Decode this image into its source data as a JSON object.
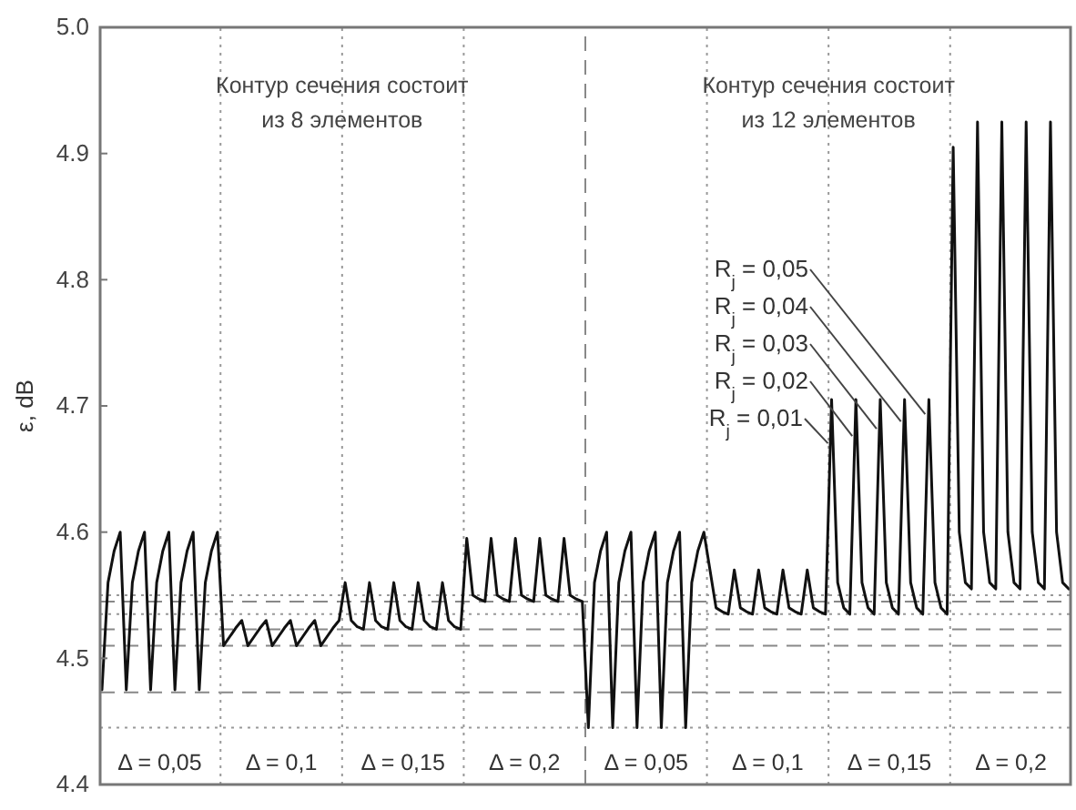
{
  "chart_data": {
    "type": "line",
    "ylabel": "ε, dB",
    "categories": [
      null,
      null,
      null,
      null,
      null,
      null,
      null,
      null,
      null,
      null,
      null,
      null,
      null,
      null,
      null,
      null,
      null,
      null,
      null,
      null,
      null,
      null,
      null,
      null,
      null,
      null,
      null,
      null,
      null,
      null,
      null,
      null,
      null,
      null,
      null,
      null,
      null,
      null,
      null,
      null,
      null,
      null,
      null,
      null,
      null,
      null,
      null,
      null,
      null,
      null,
      null,
      null,
      null,
      null,
      null,
      null,
      null,
      null,
      null,
      null,
      null,
      null,
      null,
      null,
      null,
      null,
      null,
      null,
      null,
      null,
      null,
      null,
      null,
      null,
      null,
      null,
      null,
      null,
      null,
      null,
      null,
      null,
      null,
      null,
      null,
      null,
      null,
      null,
      null,
      null,
      null,
      null,
      null,
      null,
      null,
      null,
      null,
      null,
      null,
      null,
      null,
      null,
      null,
      null,
      null,
      null,
      null,
      null,
      null,
      null,
      null,
      null,
      null,
      null,
      null,
      null,
      null,
      null,
      null,
      null,
      null,
      null,
      null,
      null,
      null,
      null,
      null,
      null,
      null,
      null,
      null,
      null,
      null,
      null,
      null,
      null,
      null,
      null,
      null,
      null,
      null,
      null,
      null,
      null,
      null,
      null,
      null,
      null,
      null,
      null,
      null,
      null,
      null,
      null,
      null,
      null,
      null,
      null,
      null,
      null
    ],
    "ylim": [
      4.4,
      5.0
    ],
    "yticks": [
      4.4,
      4.5,
      4.6,
      4.7,
      4.8,
      4.9,
      {
        "value": 5.0,
        "label": "5.0"
      }
    ],
    "tick_labels": "y",
    "grid": false,
    "marker": "none",
    "line_style": "solid",
    "series": [
      {
        "color": "#111111",
        "values": [
          4.475,
          4.56,
          4.585,
          4.6,
          4.475,
          4.56,
          4.585,
          4.6,
          4.475,
          4.56,
          4.585,
          4.6,
          4.475,
          4.56,
          4.585,
          4.6,
          4.475,
          4.56,
          4.585,
          4.6,
          4.51,
          4.517,
          4.524,
          4.53,
          4.51,
          4.517,
          4.524,
          4.53,
          4.51,
          4.517,
          4.524,
          4.53,
          4.51,
          4.517,
          4.524,
          4.53,
          4.51,
          4.517,
          4.524,
          4.53,
          4.56,
          4.53,
          4.525,
          4.523,
          4.56,
          4.53,
          4.525,
          4.523,
          4.56,
          4.53,
          4.525,
          4.523,
          4.56,
          4.53,
          4.525,
          4.523,
          4.56,
          4.53,
          4.525,
          4.523,
          4.595,
          4.55,
          4.547,
          4.545,
          4.595,
          4.55,
          4.547,
          4.545,
          4.595,
          4.55,
          4.547,
          4.545,
          4.595,
          4.55,
          4.547,
          4.545,
          4.595,
          4.55,
          4.547,
          4.545,
          4.445,
          4.56,
          4.585,
          4.6,
          4.445,
          4.56,
          4.585,
          4.6,
          4.445,
          4.56,
          4.585,
          4.6,
          4.445,
          4.56,
          4.585,
          4.6,
          4.445,
          4.56,
          4.585,
          4.6,
          4.57,
          4.54,
          4.537,
          4.535,
          4.57,
          4.54,
          4.537,
          4.535,
          4.57,
          4.54,
          4.537,
          4.535,
          4.57,
          4.54,
          4.537,
          4.535,
          4.57,
          4.54,
          4.537,
          4.535,
          4.705,
          4.56,
          4.54,
          4.535,
          4.705,
          4.56,
          4.54,
          4.535,
          4.705,
          4.56,
          4.54,
          4.535,
          4.705,
          4.56,
          4.54,
          4.535,
          4.705,
          4.56,
          4.54,
          4.535,
          4.905,
          4.6,
          4.56,
          4.555,
          4.925,
          4.6,
          4.56,
          4.555,
          4.925,
          4.6,
          4.56,
          4.555,
          4.925,
          4.6,
          4.56,
          4.555,
          4.925,
          4.6,
          4.56,
          4.555
        ]
      }
    ],
    "ref_lines": [
      {
        "axis": "y",
        "value": 4.55,
        "line_style": "dotted",
        "color": "#999999"
      },
      {
        "axis": "y",
        "value": 4.545,
        "line_style": "dashed",
        "color": "#888888"
      },
      {
        "axis": "y",
        "value": 4.535,
        "line_style": "dotted",
        "color": "#999999"
      },
      {
        "axis": "y",
        "value": 4.523,
        "line_style": "dashed",
        "color": "#888888"
      },
      {
        "axis": "y",
        "value": 4.51,
        "line_style": "dashed",
        "color": "#888888"
      },
      {
        "axis": "y",
        "value": 4.473,
        "line_style": "dashed",
        "color": "#888888"
      },
      {
        "axis": "y",
        "value": 4.445,
        "line_style": "dotted",
        "color": "#999999"
      }
    ],
    "annotations": [
      "Контур сечения состоит\nиз 8 элементов",
      "Контур сечения состоит\nиз 12 элементов",
      "Δ = 0,05",
      "Δ = 0,1",
      "Δ = 0,15",
      "Δ = 0,2",
      "Δ = 0,05",
      "Δ = 0,1",
      "Δ = 0,15",
      "Δ = 0,2",
      "R$_{j}$ = 0,05",
      "R$_{j}$ = 0,04",
      "R$_{j}$ = 0,03",
      "R$_{j}$ = 0,02",
      "R$_{j}$ = 0,01"
    ]
  }
}
